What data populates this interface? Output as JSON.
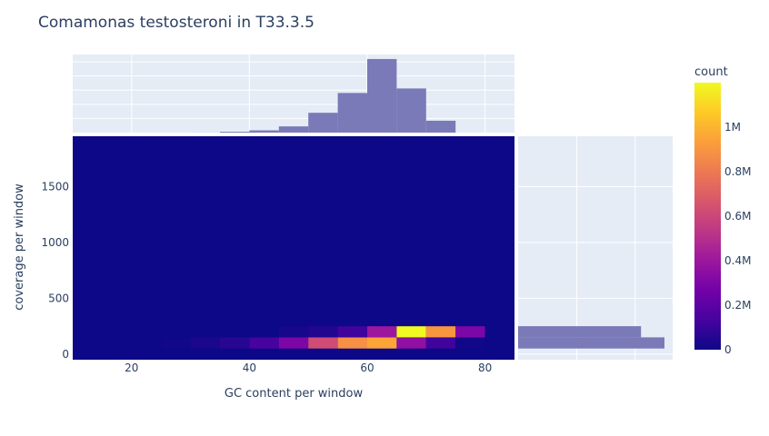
{
  "chart_data": {
    "type": "heatmap",
    "title": "Comamonas testosteroni in T33.3.5",
    "xlabel": "GC content per window",
    "ylabel": "coverage per window",
    "x_range": [
      10,
      85
    ],
    "y_range": [
      -50,
      1950
    ],
    "x_ticks": [
      20,
      40,
      60,
      80
    ],
    "y_ticks": [
      0,
      500,
      1000,
      1500
    ],
    "heatmap": {
      "x_bin_edges": [
        10,
        15,
        20,
        25,
        30,
        35,
        40,
        45,
        50,
        55,
        60,
        65,
        70,
        75,
        80,
        85
      ],
      "y_bin_edges": [
        -50,
        50,
        150,
        250,
        1950
      ],
      "counts": [
        [
          0,
          0,
          0,
          0,
          0,
          0,
          0,
          0,
          0,
          0,
          0,
          0,
          0,
          0,
          0
        ],
        [
          0,
          0,
          0,
          10000,
          30000,
          60000,
          140000,
          300000,
          620000,
          880000,
          950000,
          360000,
          120000,
          10000,
          0
        ],
        [
          0,
          0,
          0,
          0,
          0,
          0,
          0,
          20000,
          50000,
          120000,
          400000,
          1200000,
          900000,
          300000,
          0
        ],
        [
          0,
          0,
          0,
          0,
          0,
          0,
          0,
          0,
          0,
          0,
          0,
          0,
          0,
          0,
          0
        ]
      ]
    },
    "top_histogram": {
      "x_bin_edges": [
        10,
        15,
        20,
        25,
        30,
        35,
        40,
        45,
        50,
        55,
        60,
        65,
        70,
        75,
        80,
        85
      ],
      "values": [
        0,
        0,
        0,
        0,
        1000,
        15000,
        40000,
        110000,
        350000,
        700000,
        1300000,
        780000,
        210000,
        0,
        0
      ],
      "ylim": [
        0,
        1380000
      ]
    },
    "right_histogram": {
      "y_bin_edges": [
        -50,
        50,
        150,
        250,
        1950
      ],
      "values": [
        0,
        1250000,
        1050000,
        0
      ],
      "xlim": [
        0,
        1320000
      ]
    },
    "colorbar": {
      "title": "count",
      "range": [
        0,
        1200000
      ],
      "ticks": [
        {
          "value": 0,
          "label": "0"
        },
        {
          "value": 200000,
          "label": "0.2M"
        },
        {
          "value": 400000,
          "label": "0.4M"
        },
        {
          "value": 600000,
          "label": "0.6M"
        },
        {
          "value": 800000,
          "label": "0.8M"
        },
        {
          "value": 1000000,
          "label": "1M"
        }
      ],
      "colorscale": [
        "#0d0887",
        "#46039f",
        "#7201a8",
        "#9c179e",
        "#bd3786",
        "#d8576b",
        "#ed7953",
        "#fb9f3a",
        "#fdca26",
        "#f0f921"
      ]
    },
    "colors": {
      "histogram_fill": "#7a7ab8",
      "panel_bg": "#e5ecf6",
      "grid": "#ffffff",
      "text": "#2a3f5f"
    }
  }
}
